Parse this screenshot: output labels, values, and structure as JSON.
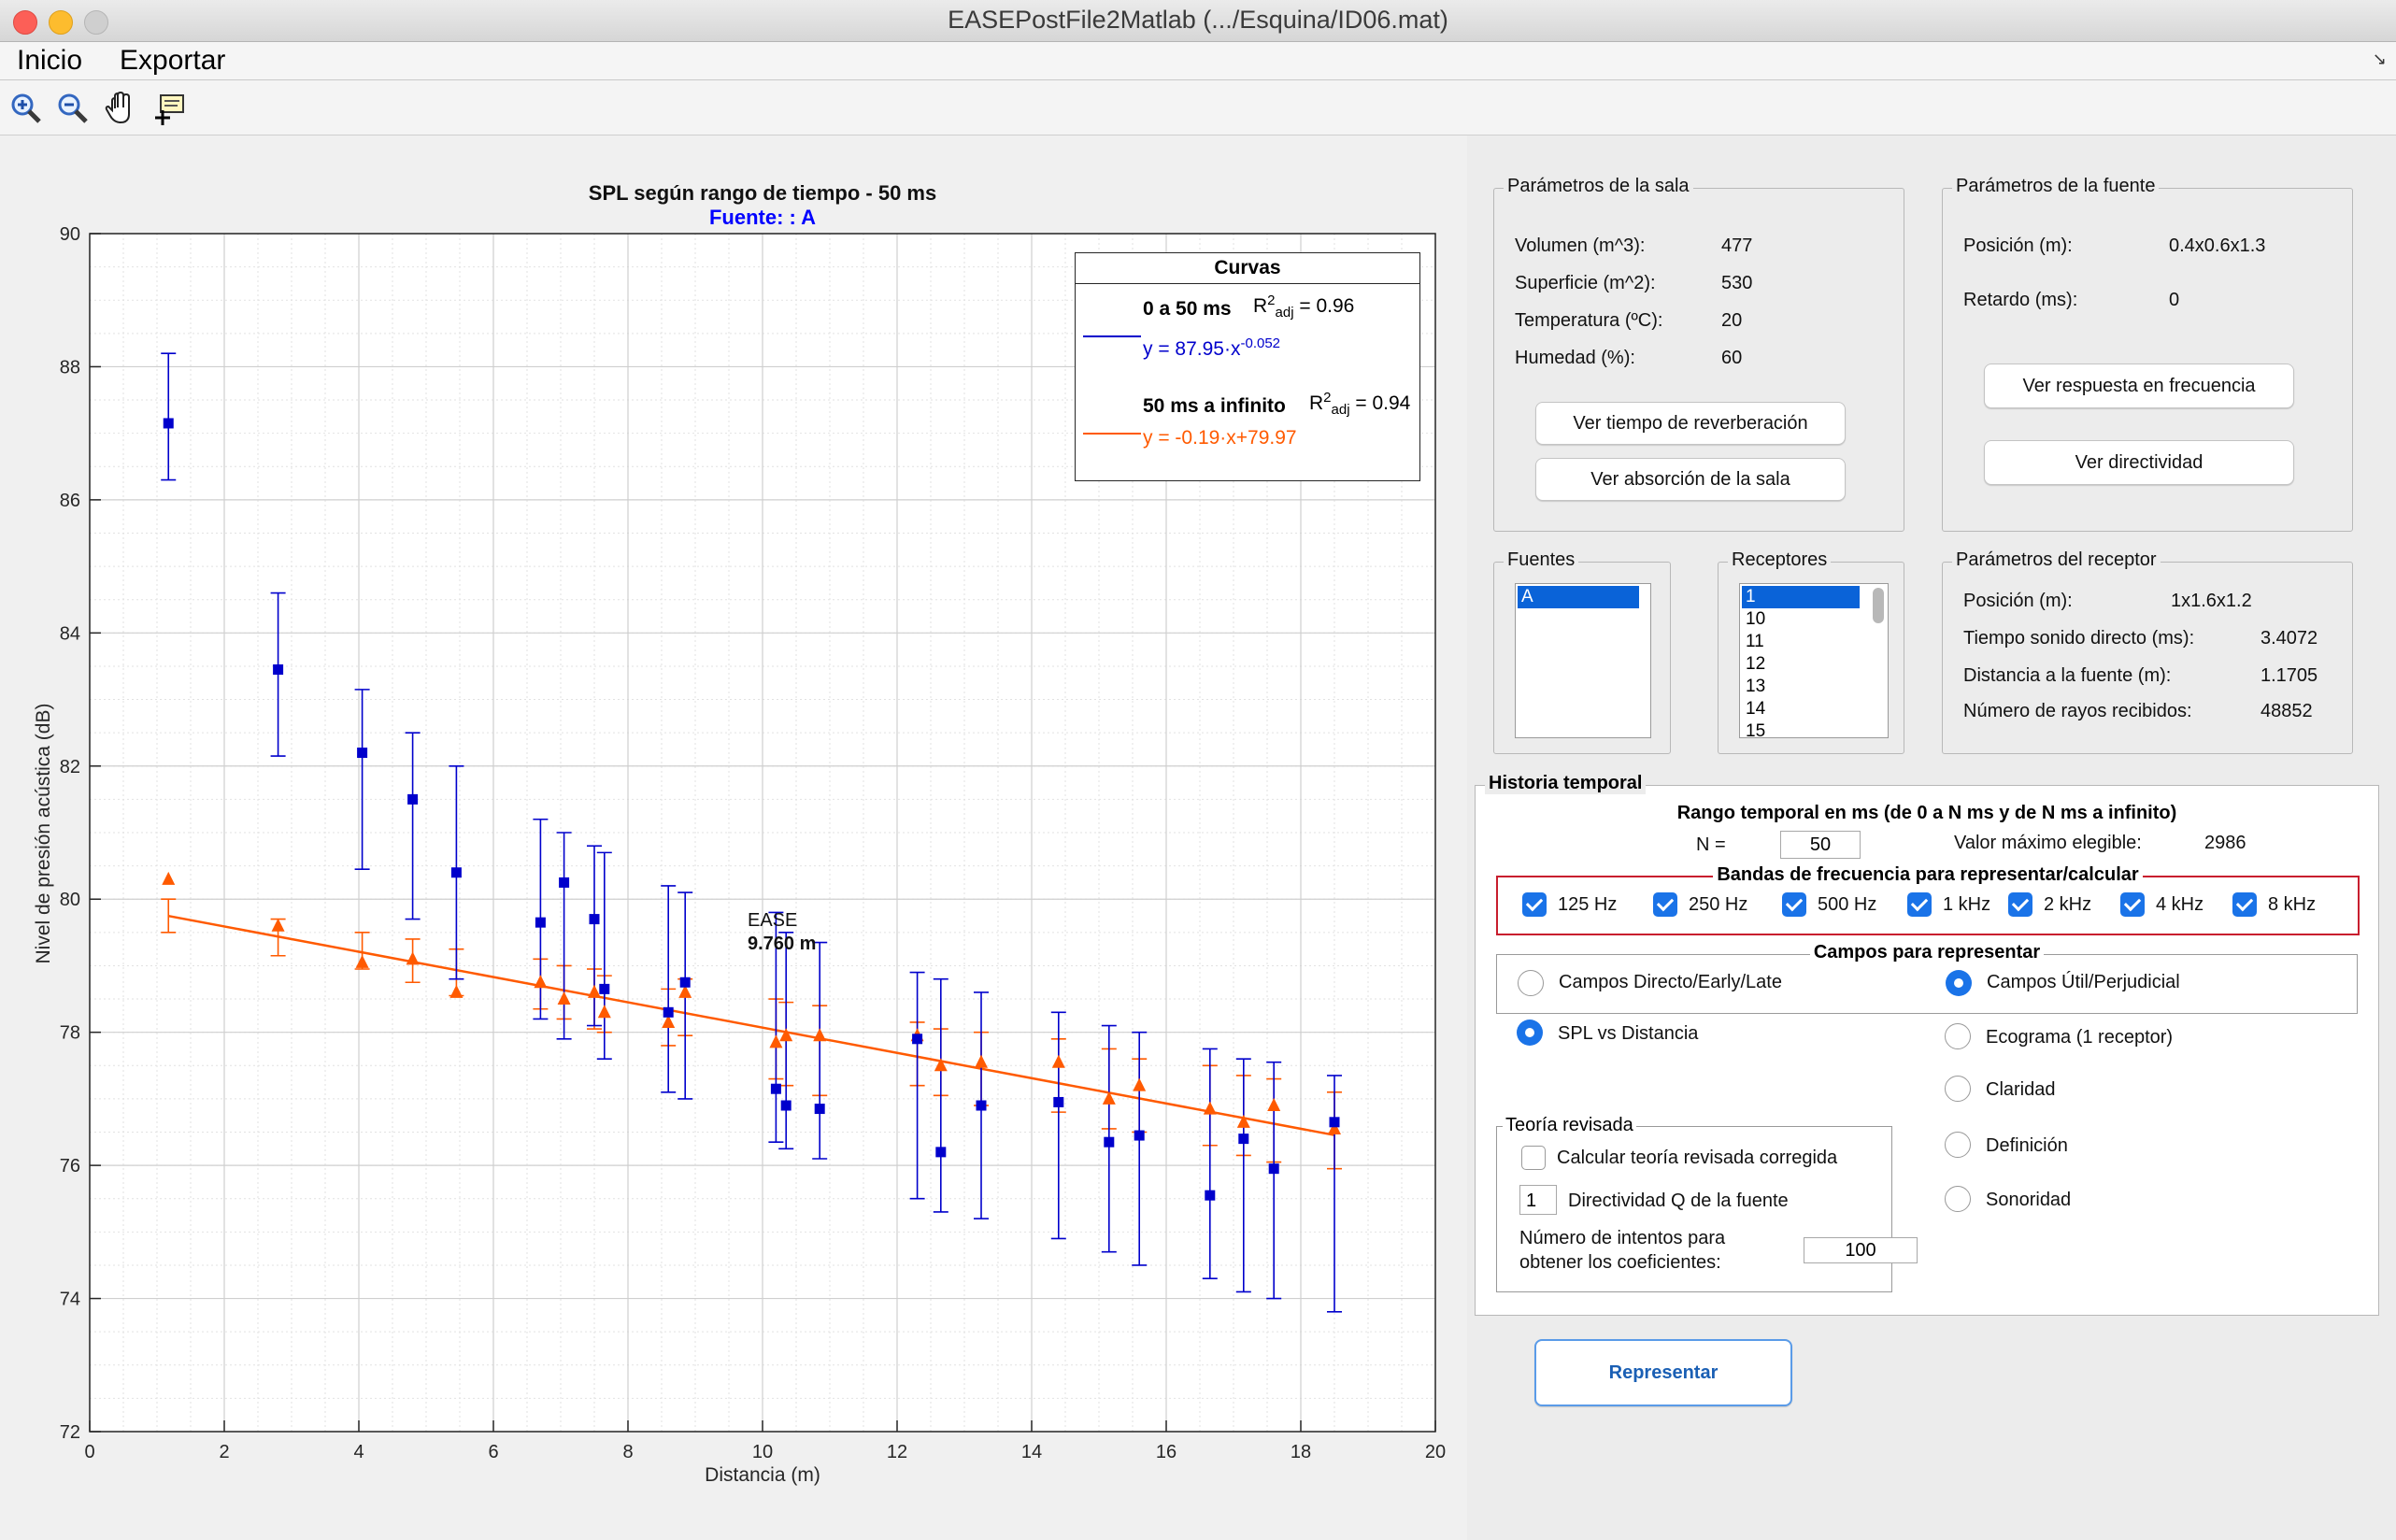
{
  "window": {
    "title": "EASEPostFile2Matlab (.../Esquina/ID06.mat)"
  },
  "menu": {
    "items": [
      "Inicio",
      "Exportar"
    ]
  },
  "toolbar": {
    "icons": [
      "zoom-in-icon",
      "zoom-out-icon",
      "pan-hand-icon",
      "data-cursor-icon"
    ]
  },
  "plot": {
    "title": "SPL según rango de tiempo - 50 ms",
    "subtitle": "Fuente: : A",
    "xlabel": "Distancia (m)",
    "ylabel": "Nivel de presión acústica (dB)",
    "annotation_label": "EASE",
    "annotation_value": "9.760 m",
    "legend": {
      "title": "Curvas",
      "s1_name": "0 a 50 ms",
      "s1_r_prefix": "R",
      "s1_r_sup": "2",
      "s1_r_sub": "adj",
      "s1_r_value": "= 0.96",
      "s1_eq": "y = 87.95·x",
      "s1_eq_exp": "-0.052",
      "s2_name": "50 ms a infinito",
      "s2_r_prefix": "R",
      "s2_r_sup": "2",
      "s2_r_sub": "adj",
      "s2_r_value": "= 0.94",
      "s2_eq": "y = -0.19·x+79.97"
    }
  },
  "chart_data": {
    "type": "scatter",
    "title": "SPL según rango de tiempo - 50 ms",
    "subtitle": "Fuente: : A",
    "xlabel": "Distancia (m)",
    "ylabel": "Nivel de presión acústica (dB)",
    "xlim": [
      0,
      20
    ],
    "ylim": [
      72,
      90
    ],
    "xticks": [
      0,
      2,
      4,
      6,
      8,
      10,
      12,
      14,
      16,
      18,
      20
    ],
    "yticks": [
      72,
      74,
      76,
      78,
      80,
      82,
      84,
      86,
      88,
      90
    ],
    "grid": true,
    "legend_position": "top-right",
    "colors": {
      "early": "#0000cc",
      "late": "#ff5a00"
    },
    "vline_x": 9.76,
    "series": [
      {
        "name": "0 a 50 ms",
        "marker": "square",
        "fit": {
          "type": "power",
          "a": 87.95,
          "b": -0.052
        },
        "points": [
          [
            1.17,
            87.15,
            86.3,
            88.2
          ],
          [
            2.8,
            83.45,
            82.15,
            84.6
          ],
          [
            4.05,
            82.2,
            80.45,
            83.15
          ],
          [
            4.8,
            81.5,
            79.7,
            82.5
          ],
          [
            5.45,
            80.4,
            78.8,
            82.0
          ],
          [
            6.7,
            79.65,
            78.2,
            81.2
          ],
          [
            7.05,
            80.25,
            77.9,
            81.0
          ],
          [
            7.5,
            79.7,
            78.1,
            80.8
          ],
          [
            7.65,
            78.65,
            77.6,
            80.7
          ],
          [
            8.6,
            78.3,
            77.1,
            80.2
          ],
          [
            8.85,
            78.75,
            77.0,
            80.1
          ],
          [
            10.2,
            77.15,
            76.35,
            79.8
          ],
          [
            10.35,
            76.9,
            76.25,
            79.5
          ],
          [
            10.85,
            76.85,
            76.1,
            79.35
          ],
          [
            12.3,
            77.9,
            75.5,
            78.9
          ],
          [
            12.65,
            76.2,
            75.3,
            78.8
          ],
          [
            13.25,
            76.9,
            75.2,
            78.6
          ],
          [
            14.4,
            76.95,
            74.9,
            78.3
          ],
          [
            15.15,
            76.35,
            74.7,
            78.1
          ],
          [
            15.6,
            76.45,
            74.5,
            78.0
          ],
          [
            16.65,
            75.55,
            74.3,
            77.75
          ],
          [
            17.15,
            76.4,
            74.1,
            77.6
          ],
          [
            17.6,
            75.95,
            74.0,
            77.55
          ],
          [
            18.5,
            76.65,
            73.8,
            77.35
          ]
        ]
      },
      {
        "name": "50 ms a infinito",
        "marker": "triangle",
        "fit": {
          "type": "linear",
          "m": -0.19,
          "c": 79.97
        },
        "points": [
          [
            1.17,
            80.3,
            79.5,
            80.0
          ],
          [
            2.8,
            79.6,
            79.15,
            79.7
          ],
          [
            4.05,
            79.05,
            78.95,
            79.5
          ],
          [
            4.8,
            79.1,
            78.75,
            79.4
          ],
          [
            5.45,
            78.6,
            78.55,
            79.25
          ],
          [
            6.7,
            78.75,
            78.35,
            79.1
          ],
          [
            7.05,
            78.5,
            78.2,
            79.0
          ],
          [
            7.5,
            78.6,
            78.05,
            78.95
          ],
          [
            7.65,
            78.3,
            78.0,
            78.85
          ],
          [
            8.6,
            78.15,
            77.8,
            78.65
          ],
          [
            8.85,
            78.6,
            77.95,
            78.8
          ],
          [
            10.2,
            77.85,
            77.3,
            78.5
          ],
          [
            10.35,
            77.95,
            77.2,
            78.45
          ],
          [
            10.85,
            77.95,
            77.05,
            78.4
          ],
          [
            12.3,
            77.95,
            77.2,
            78.15
          ],
          [
            12.65,
            77.5,
            77.05,
            78.05
          ],
          [
            13.25,
            77.55,
            76.9,
            78.0
          ],
          [
            14.4,
            77.55,
            76.8,
            77.9
          ],
          [
            15.15,
            77.0,
            76.55,
            77.75
          ],
          [
            15.6,
            77.2,
            76.5,
            77.6
          ],
          [
            16.65,
            76.85,
            76.3,
            77.5
          ],
          [
            17.15,
            76.65,
            76.15,
            77.35
          ],
          [
            17.6,
            76.9,
            76.05,
            77.3
          ],
          [
            18.5,
            76.55,
            75.95,
            77.1
          ]
        ]
      }
    ]
  },
  "sala": {
    "title": "Parámetros de la sala",
    "rows": [
      {
        "label": "Volumen (m^3):",
        "value": "477"
      },
      {
        "label": "Superficie (m^2):",
        "value": "530"
      },
      {
        "label": "Temperatura (ºC):",
        "value": "20"
      },
      {
        "label": "Humedad (%):",
        "value": "60"
      }
    ],
    "btn_reverb": "Ver tiempo de reverberación",
    "btn_absorb": "Ver absorción de la sala"
  },
  "fuente": {
    "title": "Parámetros de la fuente",
    "pos_label": "Posición (m):",
    "pos_value": "0.4x0.6x1.3",
    "ret_label": "Retardo (ms):",
    "ret_value": "0",
    "btn_freq": "Ver respuesta en frecuencia",
    "btn_dir": "Ver directividad"
  },
  "fuentes": {
    "title": "Fuentes",
    "items": [
      "A"
    ]
  },
  "receptores": {
    "title": "Receptores",
    "items": [
      "1",
      "10",
      "11",
      "12",
      "13",
      "14",
      "15"
    ]
  },
  "receptor": {
    "title": "Parámetros del receptor",
    "rows": [
      {
        "label": "Posición (m):",
        "value": "1x1.6x1.2"
      },
      {
        "label": "Tiempo sonido directo (ms):",
        "value": "3.4072"
      },
      {
        "label": "Distancia a la fuente (m):",
        "value": "1.1705"
      },
      {
        "label": "Número de rayos recibidos:",
        "value": "48852"
      }
    ]
  },
  "historia": {
    "title": "Historia temporal",
    "rango_title": "Rango temporal en ms (de 0 a N ms y de N ms a infinito)",
    "n_label": "N =",
    "n_value": "50",
    "max_label": "Valor máximo elegible:",
    "max_value": "2986",
    "bandas_title": "Bandas de frecuencia para representar/calcular",
    "bandas": [
      "125 Hz",
      "250 Hz",
      "500 Hz",
      "1 kHz",
      "2 kHz",
      "4 kHz",
      "8 kHz"
    ],
    "campos_title": "Campos para representar",
    "campos_a": "Campos Directo/Early/Late",
    "campos_b": "Campos Útil/Perjudicial",
    "opt_spl": "SPL vs Distancia",
    "opt_ecograma": "Ecograma (1 receptor)",
    "opt_claridad": "Claridad",
    "opt_definicion": "Definición",
    "opt_sonoridad": "Sonoridad",
    "teoria_title": "Teoría revisada",
    "teoria_chk": "Calcular teoría revisada corregida",
    "q_value": "1",
    "q_label": "Directividad Q de la fuente",
    "intentos_l1": "Número de intentos para",
    "intentos_l2": "obtener los coeficientes:",
    "intentos_value": "100"
  },
  "represent_btn": "Representar"
}
